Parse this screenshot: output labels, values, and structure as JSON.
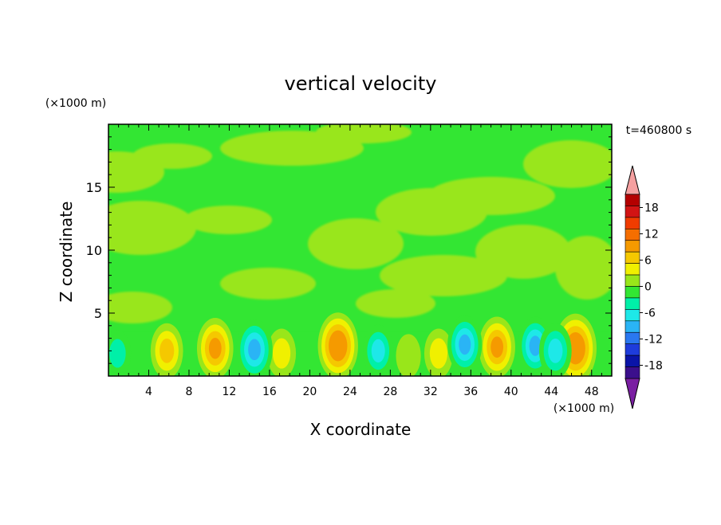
{
  "chart_data": {
    "type": "heatmap",
    "title": "vertical velocity",
    "xlabel": "X coordinate",
    "ylabel": "Z coordinate",
    "x_unit": "(×1000 m)",
    "y_unit": "(×1000 m)",
    "time_label": "t=460800 s",
    "xlim": [
      0,
      50
    ],
    "ylim": [
      0,
      20
    ],
    "x_ticks": [
      4,
      8,
      12,
      16,
      20,
      24,
      28,
      32,
      36,
      40,
      44,
      48
    ],
    "y_ticks": [
      5,
      10,
      15
    ],
    "colorbar": {
      "min": -21,
      "max": 21,
      "labels": [
        18,
        12,
        6,
        0,
        -6,
        -12,
        -18
      ],
      "colors": [
        "#7a1fa2",
        "#3b0f8c",
        "#0a14a8",
        "#1e3cdc",
        "#2a78f0",
        "#2ab4f5",
        "#1ee8e8",
        "#00f0a8",
        "#33e633",
        "#99e61a",
        "#f0f000",
        "#f5c800",
        "#f59a00",
        "#f56e00",
        "#f03c00",
        "#d21414",
        "#b40000",
        "#f5a0a0"
      ]
    },
    "features": {
      "updrafts": [
        {
          "x": 5.8,
          "z": 2.0,
          "w": 7
        },
        {
          "x": 10.6,
          "z": 2.2,
          "w": 9
        },
        {
          "x": 17.2,
          "z": 1.8,
          "w": 5
        },
        {
          "x": 22.8,
          "z": 2.4,
          "w": 11
        },
        {
          "x": 29.8,
          "z": 1.6,
          "w": 3
        },
        {
          "x": 32.8,
          "z": 1.8,
          "w": 5
        },
        {
          "x": 38.6,
          "z": 2.3,
          "w": 9
        },
        {
          "x": 46.4,
          "z": 2.2,
          "w": 12
        }
      ],
      "downdrafts": [
        {
          "x": 0.9,
          "z": 1.8,
          "w": -4
        },
        {
          "x": 14.5,
          "z": 2.1,
          "w": -9
        },
        {
          "x": 26.8,
          "z": 2.0,
          "w": -6
        },
        {
          "x": 35.4,
          "z": 2.5,
          "w": -8
        },
        {
          "x": 42.4,
          "z": 2.4,
          "w": -8
        },
        {
          "x": 44.4,
          "z": 2.0,
          "w": -7
        }
      ]
    }
  }
}
